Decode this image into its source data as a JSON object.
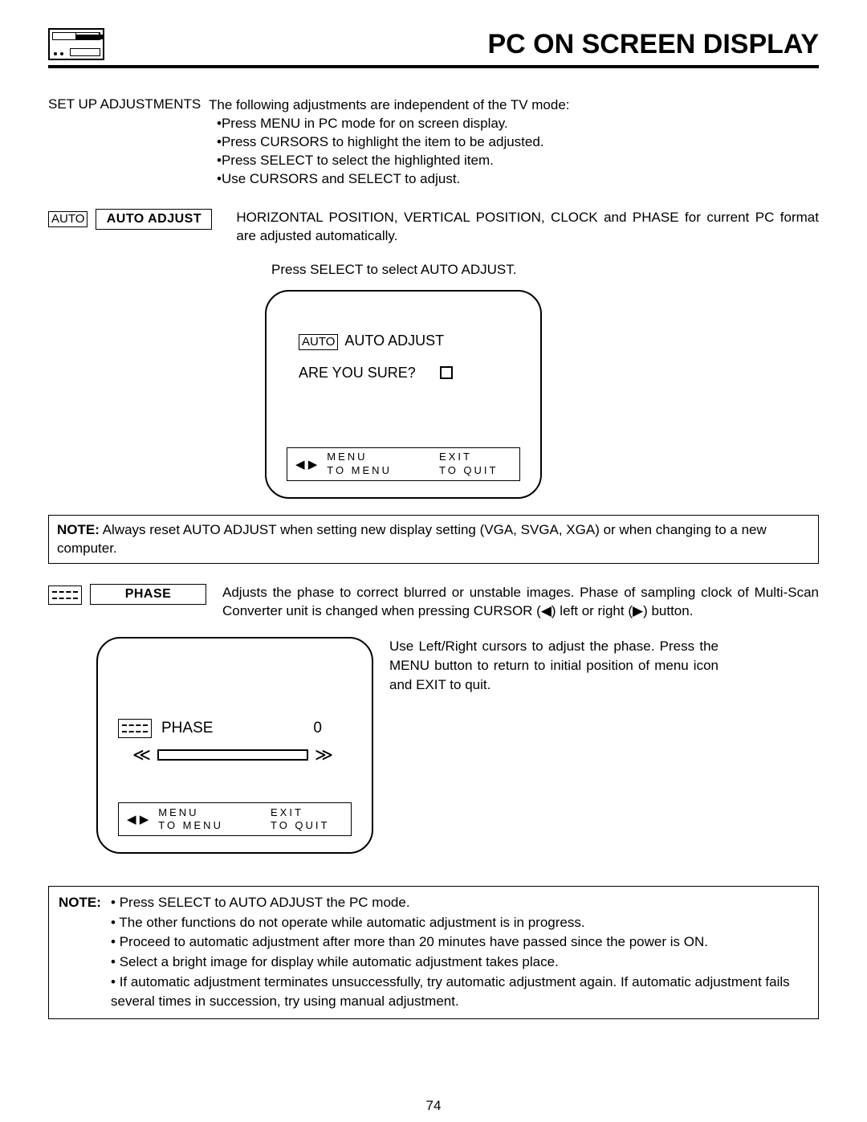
{
  "header": {
    "title": "PC ON SCREEN DISPLAY"
  },
  "intro": {
    "heading": "SET UP ADJUSTMENTS",
    "lead": "The following adjustments are independent of the TV mode:",
    "bullets": [
      "Press MENU in PC mode for on screen display.",
      "Press CURSORS to highlight the item to be adjusted.",
      "Press SELECT to select the highlighted item.",
      "Use CURSORS and SELECT to adjust."
    ]
  },
  "auto": {
    "tag": "AUTO",
    "label": "AUTO ADJUST",
    "desc": "HORIZONTAL POSITION, VERTICAL POSITION, CLOCK and PHASE for current PC format are adjusted automatically.",
    "sub": "Press SELECT to select AUTO ADJUST.",
    "osd": {
      "tag": "AUTO",
      "title": "AUTO ADJUST",
      "prompt": "ARE YOU SURE?",
      "menu": "MENU",
      "to_menu": "TO  MENU",
      "exit": "EXIT",
      "to_quit": "TO  QUIT"
    }
  },
  "note1": "Always reset AUTO ADJUST when setting new display setting (VGA, SVGA, XGA) or when changing to a new computer.",
  "phase": {
    "label": "PHASE",
    "desc": "Adjusts the phase to correct blurred or unstable images.  Phase of sampling clock of Multi-Scan Converter unit is changed when pressing CURSOR (◀) left or right (▶) button.",
    "instr": "Use Left/Right cursors to adjust the phase.  Press the MENU button to return to initial position of menu icon and EXIT to quit.",
    "osd": {
      "title": "PHASE",
      "value": "0",
      "menu": "MENU",
      "to_menu": "TO  MENU",
      "exit": "EXIT",
      "to_quit": "TO  QUIT"
    }
  },
  "note2": {
    "label": "NOTE:",
    "items": [
      "Press SELECT to AUTO ADJUST the PC mode.",
      "The other functions do not operate while automatic adjustment is in progress.",
      "Proceed to automatic adjustment after more than 20 minutes have passed since the power is ON.",
      "Select a bright image for display while automatic adjustment takes place.",
      "If automatic adjustment terminates unsuccessfully, try automatic adjustment again.  If automatic adjustment fails several times in succession, try using manual adjustment."
    ]
  },
  "page": "74"
}
